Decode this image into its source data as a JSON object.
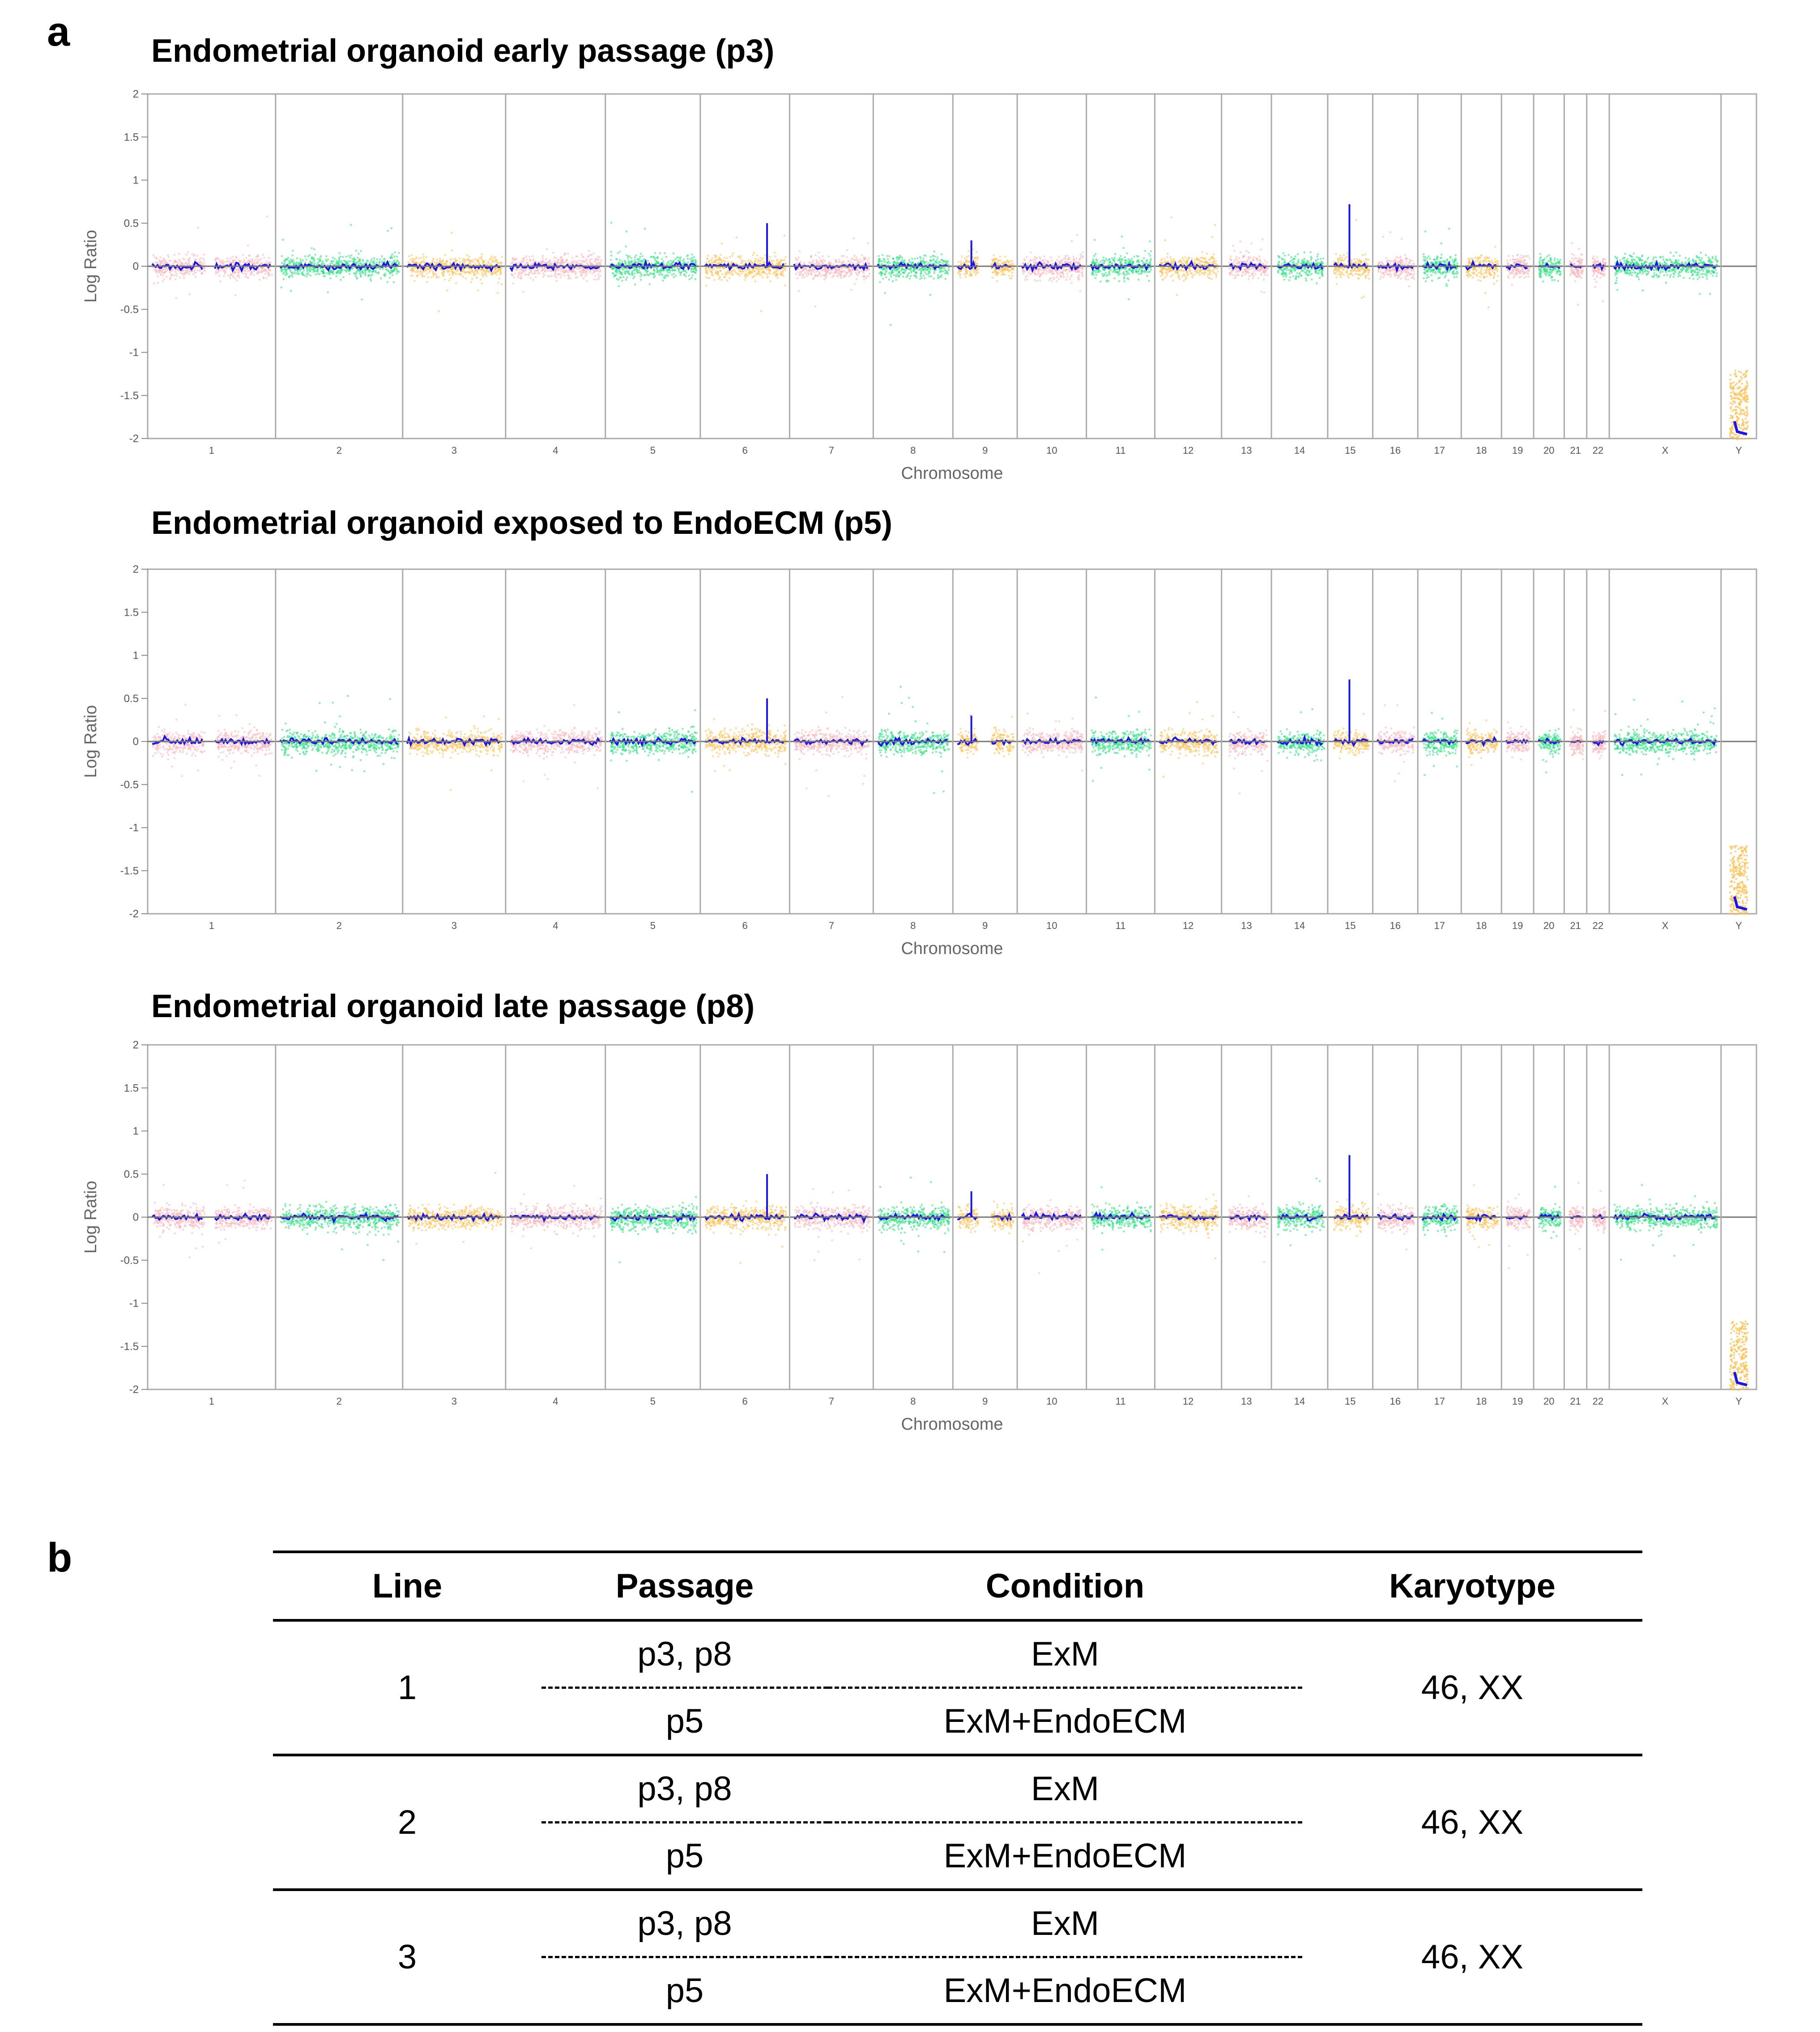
{
  "panel_a_label": "a",
  "panel_b_label": "b",
  "chart_data": [
    {
      "type": "scatter",
      "title": "Endometrial organoid early passage (p3)",
      "xlabel": "Chromosome",
      "ylabel": "Log Ratio",
      "ylim": [
        -2,
        2
      ],
      "yticks": [
        "2",
        "1.5",
        "1",
        "0.5",
        "0",
        "-0.5",
        "-1",
        "-1.5",
        "-2"
      ],
      "categories": [
        "1",
        "2",
        "3",
        "4",
        "5",
        "6",
        "7",
        "8",
        "9",
        "10",
        "11",
        "12",
        "13",
        "14",
        "15",
        "16",
        "17",
        "18",
        "19",
        "20",
        "21",
        "22",
        "X",
        "Y"
      ],
      "segment_log_ratio": [
        0,
        0,
        0,
        0,
        0,
        0,
        0,
        0,
        0,
        0,
        0,
        0,
        0,
        0,
        0,
        0,
        0,
        0,
        0,
        0,
        0,
        0,
        0,
        -1.95
      ]
    },
    {
      "type": "scatter",
      "title": "Endometrial organoid exposed to EndoECM (p5)",
      "xlabel": "Chromosome",
      "ylabel": "Log Ratio",
      "ylim": [
        -2,
        2
      ],
      "yticks": [
        "2",
        "1.5",
        "1",
        "0.5",
        "0",
        "-0.5",
        "-1",
        "-1.5",
        "-2"
      ],
      "categories": [
        "1",
        "2",
        "3",
        "4",
        "5",
        "6",
        "7",
        "8",
        "9",
        "10",
        "11",
        "12",
        "13",
        "14",
        "15",
        "16",
        "17",
        "18",
        "19",
        "20",
        "21",
        "22",
        "X",
        "Y"
      ],
      "segment_log_ratio": [
        0,
        0,
        0,
        0,
        0,
        0,
        0,
        0,
        0,
        0,
        0,
        0,
        0,
        0,
        0,
        0,
        0,
        0,
        0,
        0,
        0,
        0,
        0,
        -1.95
      ]
    },
    {
      "type": "scatter",
      "title": "Endometrial organoid late passage (p8)",
      "xlabel": "Chromosome",
      "ylabel": "Log Ratio",
      "ylim": [
        -2,
        2
      ],
      "yticks": [
        "2",
        "1.5",
        "1",
        "0.5",
        "0",
        "-0.5",
        "-1",
        "-1.5",
        "-2"
      ],
      "categories": [
        "1",
        "2",
        "3",
        "4",
        "5",
        "6",
        "7",
        "8",
        "9",
        "10",
        "11",
        "12",
        "13",
        "14",
        "15",
        "16",
        "17",
        "18",
        "19",
        "20",
        "21",
        "22",
        "X",
        "Y"
      ],
      "segment_log_ratio": [
        0,
        0,
        0,
        0,
        0,
        0,
        0,
        0,
        0,
        0,
        0,
        0,
        0,
        0,
        0,
        0,
        0,
        0,
        0,
        0,
        0,
        0,
        0,
        -1.95
      ]
    }
  ],
  "colors": {
    "pink": "#f9b3b8",
    "green": "#22e27a",
    "orange": "#ffc04d",
    "segment": "#1a14f0",
    "frame": "#aaaaaa"
  },
  "table": {
    "headers": [
      "Line",
      "Passage",
      "Condition",
      "Karyotype"
    ],
    "rows": [
      {
        "line": "1",
        "karyotype": "46, XX",
        "sub": [
          {
            "passage": "p3, p8",
            "condition": "ExM"
          },
          {
            "passage": "p5",
            "condition": "ExM+EndoECM"
          }
        ]
      },
      {
        "line": "2",
        "karyotype": "46, XX",
        "sub": [
          {
            "passage": "p3, p8",
            "condition": "ExM"
          },
          {
            "passage": "p5",
            "condition": "ExM+EndoECM"
          }
        ]
      },
      {
        "line": "3",
        "karyotype": "46, XX",
        "sub": [
          {
            "passage": "p3, p8",
            "condition": "ExM"
          },
          {
            "passage": "p5",
            "condition": "ExM+EndoECM"
          }
        ]
      }
    ]
  }
}
